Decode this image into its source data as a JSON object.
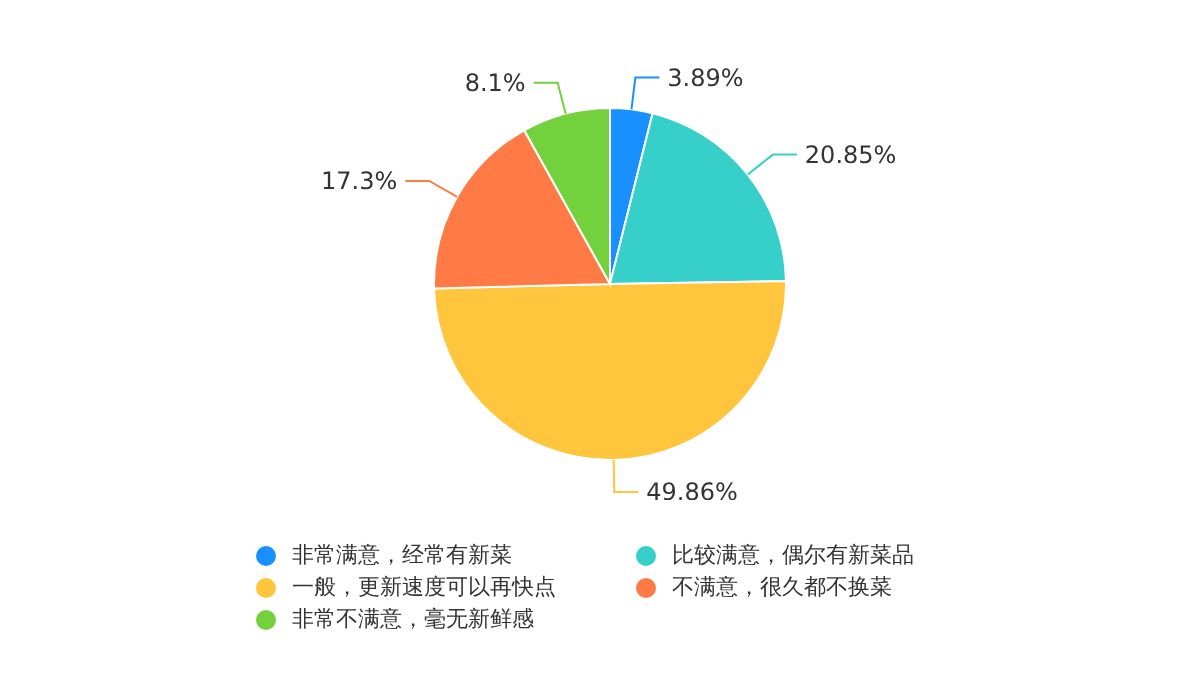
{
  "chart_data": {
    "type": "pie",
    "categories": [
      "非常满意，经常有新菜",
      "比较满意，偶尔有新菜品",
      "一般，更新速度可以再快点",
      "不满意，很久都不换菜",
      "非常不满意，毫无新鲜感"
    ],
    "values": [
      3.89,
      20.85,
      49.86,
      17.3,
      8.1
    ],
    "value_labels": [
      "3.89%",
      "20.85%",
      "49.86%",
      "17.3%",
      "8.1%"
    ],
    "colors": [
      "#1890ff",
      "#36cfc9",
      "#ffc53d",
      "#ff7a45",
      "#73d13d"
    ],
    "legend": "bottom"
  }
}
